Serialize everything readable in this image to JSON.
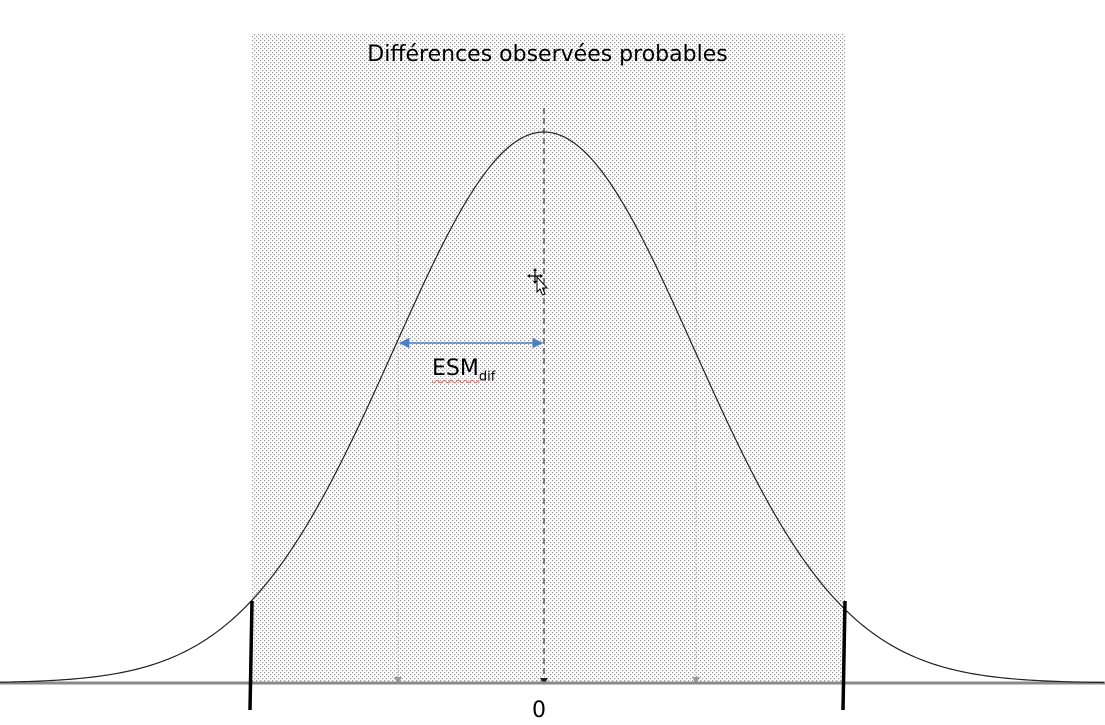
{
  "diagram": {
    "title": "Différences observées probables",
    "esm_label": "ESM",
    "esm_subscript": "dif",
    "center_label": "0"
  },
  "icons": {
    "cursor": "move-cursor-icon"
  },
  "colors": {
    "shade": "#cfcfcf",
    "curve": "#222222",
    "axis": "#8a8a8a",
    "arrow": "#4a7fc1"
  }
}
